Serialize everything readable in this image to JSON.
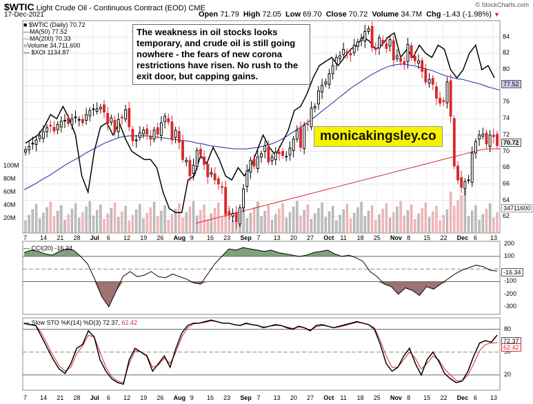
{
  "header": {
    "symbol": "$WTIC",
    "description": "Light Crude Oil - Continuous Contract (EOD)",
    "exchange": "CME",
    "date": "17-Dec-2021",
    "open_label": "Open",
    "open": "71.79",
    "high_label": "High",
    "high": "72.05",
    "low_label": "Low",
    "low": "69.70",
    "close_label": "Close",
    "close": "70.72",
    "volume_label": "Volume",
    "volume": "34.7M",
    "chg_label": "Chg",
    "chg": "-1.43 (-1.98%)",
    "logo": "© StockCharts.com"
  },
  "annotation": "The weakness in oil stocks looks temporary, and crude oil is still going nowhere - the fears of new corona restrictions have risen. No rush to the exit door, but capping gains.",
  "brand_text": "monicakingsley.co",
  "legend": {
    "main": "$WTIC (Daily) 70.72",
    "ma50": "MA(50) 77.52",
    "ma200": "MA(200) 70.33",
    "volume": "Volume 34,711,600",
    "xoi": "$XOI 1134.87"
  },
  "tags": {
    "ma50": "77.52",
    "close": "70.72",
    "volume": "34711600",
    "cci": "-16.34",
    "k": "72.37",
    "d": "62.42"
  },
  "colors": {
    "up": "#000000",
    "down": "#d6282e",
    "ma50": "#1c2a9c",
    "ma200": "#d6282e",
    "vol_up": "#c0c0c0",
    "vol_down": "#f2b8bc",
    "cci_pos": "#6b8f66",
    "cci_neg": "#8b5a58"
  },
  "chart_data": [
    {
      "type": "candlestick",
      "title": "$WTIC Light Crude Oil - Continuous Contract (EOD) CME, Daily",
      "ylim": [
        60,
        86
      ],
      "y_ticks": [
        62,
        64,
        66,
        68,
        70,
        72,
        74,
        76,
        78,
        80,
        82,
        84
      ],
      "x_ticks": [
        "7",
        "14",
        "21",
        "28",
        "Jul",
        "6",
        "12",
        "19",
        "26",
        "Aug",
        "9",
        "16",
        "23",
        "Sep",
        "7",
        "13",
        "20",
        "27",
        "Oct",
        "11",
        "18",
        "25",
        "Nov",
        "8",
        "15",
        "22",
        "Dec",
        "6",
        "13"
      ],
      "volume_ticks": [
        "20M",
        "40M",
        "60M",
        "80M",
        "100M"
      ],
      "series": [
        {
          "name": "$WTIC close",
          "values": [
            70.2,
            70.6,
            71,
            71.4,
            71.9,
            72.4,
            72.9,
            73.1,
            72.5,
            73.3,
            73.7,
            73.8,
            73.4,
            74,
            74.2,
            73.9,
            73.5,
            74.5,
            75,
            75.2,
            75.2,
            75.4,
            74.8,
            73.4,
            74.1,
            72.4,
            73.9,
            74.1,
            75.1,
            73,
            71.3,
            71.4,
            72.3,
            72.6,
            72.1,
            71.5,
            72.6,
            72.1,
            73.5,
            74.3,
            73.6,
            71.4,
            72.6,
            71.1,
            69,
            68.9,
            67,
            68.3,
            70.1,
            69.6,
            68.4,
            66.9,
            67.4,
            66.5,
            66,
            65.6,
            62.3,
            62.2,
            62.4,
            61.4,
            63.1,
            65.4,
            67.6,
            68.9,
            68.2,
            69.3,
            69.7,
            70.7,
            68.7,
            69.3,
            69.9,
            69.7,
            69.5,
            69.4,
            70.4,
            71.5,
            72.6,
            70.5,
            73.2,
            73.3,
            75.3,
            75.5,
            77.4,
            78.1,
            78.5,
            79.5,
            80.5,
            81.5,
            81.7,
            82.5,
            82,
            81.8,
            83,
            83.4,
            83.8,
            84.7,
            85,
            82.7,
            82.5,
            83.9,
            83.2,
            82.6,
            83.7,
            81.2,
            81.7,
            81,
            80.7,
            83.1,
            81.5,
            81.1,
            81.1,
            79.8,
            78.5,
            78.8,
            78.2,
            76.5,
            75.9,
            76.1,
            78.5,
            74.3,
            68.2,
            66.5,
            65.6,
            66.3,
            66.5,
            69.8,
            71.2,
            72,
            72.1,
            70.9,
            72,
            71.8,
            70.7
          ]
        },
        {
          "name": "MA(50)",
          "values": [
            65.3,
            65.7,
            66.1,
            66.6,
            67,
            67.5,
            68,
            68.5,
            68.9,
            69.3,
            69.8,
            70.2,
            70.6,
            71,
            71.3,
            71.6,
            71.8,
            71.9,
            71.9,
            71.9,
            71.9,
            71.8,
            71.7,
            71.6,
            71.5,
            71.4,
            71.3,
            71.2,
            71,
            70.9,
            70.7,
            70.6,
            70.5,
            70.4,
            70.3,
            70.3,
            70.3,
            70.4,
            70.5,
            70.7,
            70.9,
            71.2,
            71.6,
            72.1,
            72.6,
            73.1,
            73.6,
            74.2,
            74.8,
            75.4,
            76,
            76.6,
            77.2,
            77.8,
            78.3,
            78.8,
            79.3,
            79.7,
            80.1,
            80.4,
            80.6,
            80.7,
            80.6,
            80.5,
            80.3,
            80.1,
            79.9,
            79.6,
            79.3,
            79.1,
            78.9,
            78.8,
            78.6,
            78.4,
            78.2,
            77.9,
            77.7,
            77.5
          ]
        },
        {
          "name": "MA(200)",
          "values": [
            61.2,
            61.4,
            61.6,
            61.8,
            62,
            62.2,
            62.4,
            62.6,
            62.8,
            63,
            63.2,
            63.4,
            63.6,
            63.8,
            64,
            64.2,
            64.4,
            64.6,
            64.8,
            65,
            65.2,
            65.4,
            65.6,
            65.8,
            66,
            66.2,
            66.4,
            66.6,
            66.8,
            67,
            67.2,
            67.4,
            67.6,
            67.8,
            68,
            68.2,
            68.4,
            68.6,
            68.8,
            69,
            69.2,
            69.4,
            69.6,
            69.8,
            70,
            70.2,
            70.3,
            70.3,
            70.3
          ]
        },
        {
          "name": "$XOI",
          "values": [
            71,
            71.5,
            72,
            73,
            74.5,
            74,
            75.5,
            74,
            72,
            67,
            65,
            70,
            73,
            73.5,
            72,
            73.5,
            71.5,
            70,
            69.5,
            69,
            69,
            68,
            65,
            63,
            62.5,
            62.5,
            66.5,
            67,
            69.5,
            68.5,
            70.5,
            69,
            67,
            66.5,
            68,
            67,
            68,
            70,
            72,
            70.5,
            69.5,
            71,
            72.5,
            75,
            75.5,
            77,
            79,
            80.5,
            81,
            81.5,
            80.5,
            81.5,
            82.5,
            83,
            84,
            83.5,
            82.5,
            83,
            84,
            84.5,
            81.5,
            82.5,
            81.5,
            83,
            82,
            81.5,
            83,
            82.5,
            80,
            79,
            80,
            82,
            83,
            80,
            80.5,
            79
          ]
        }
      ]
    },
    {
      "type": "line",
      "title": "CCI(20) -16.34",
      "ylim": [
        -360,
        220
      ],
      "y_ticks": [
        -300,
        -200,
        -100,
        100,
        200
      ],
      "reference_lines": [
        100,
        0,
        -100
      ],
      "series": [
        {
          "name": "CCI(20)",
          "values": [
            130,
            150,
            140,
            120,
            110,
            140,
            160,
            150,
            100,
            40,
            -80,
            -220,
            -300,
            -180,
            -60,
            -20,
            -60,
            -50,
            -20,
            -60,
            -70,
            -40,
            -60,
            -80,
            -110,
            -120,
            -40,
            40,
            100,
            160,
            150,
            170,
            160,
            150,
            140,
            150,
            130,
            120,
            110,
            100,
            110,
            130,
            140,
            150,
            120,
            100,
            110,
            90,
            60,
            -20,
            -60,
            -120,
            -140,
            -200,
            -150,
            -170,
            -210,
            -140,
            -160,
            -120,
            -80,
            -40,
            -10,
            10,
            30,
            20,
            -10,
            -16.34
          ]
        }
      ]
    },
    {
      "type": "line",
      "title": "Slow STO %K(14) %D(3) 72.37, 62.42",
      "ylim": [
        0,
        95
      ],
      "y_ticks": [
        20,
        50,
        80
      ],
      "reference_lines": [
        80,
        50,
        20
      ],
      "series": [
        {
          "name": "%K(14)",
          "values": [
            88,
            86,
            85,
            70,
            55,
            40,
            28,
            22,
            35,
            55,
            60,
            78,
            70,
            40,
            25,
            15,
            10,
            8,
            40,
            55,
            50,
            45,
            25,
            35,
            45,
            30,
            55,
            75,
            85,
            88,
            88,
            90,
            92,
            90,
            88,
            88,
            86,
            85,
            88,
            86,
            85,
            82,
            84,
            86,
            85,
            82,
            80,
            84,
            82,
            78,
            85,
            86,
            84,
            82,
            84,
            86,
            88,
            90,
            88,
            86,
            80,
            60,
            35,
            25,
            30,
            45,
            55,
            35,
            20,
            40,
            50,
            38,
            22,
            15,
            10,
            12,
            25,
            45,
            62,
            65,
            63,
            72.37
          ]
        },
        {
          "name": "%D(3)",
          "values": [
            87,
            86,
            85,
            75,
            60,
            45,
            32,
            25,
            30,
            48,
            58,
            72,
            70,
            50,
            30,
            18,
            12,
            10,
            35,
            52,
            50,
            46,
            30,
            33,
            42,
            35,
            50,
            70,
            82,
            87,
            88,
            89,
            91,
            90,
            88,
            88,
            86,
            85,
            87,
            86,
            85,
            83,
            84,
            85,
            85,
            83,
            81,
            83,
            82,
            79,
            83,
            85,
            84,
            82,
            83,
            85,
            87,
            89,
            88,
            86,
            82,
            65,
            45,
            30,
            30,
            40,
            50,
            42,
            28,
            35,
            45,
            40,
            28,
            20,
            13,
            12,
            20,
            35,
            52,
            60,
            62,
            62.42
          ]
        }
      ]
    }
  ]
}
